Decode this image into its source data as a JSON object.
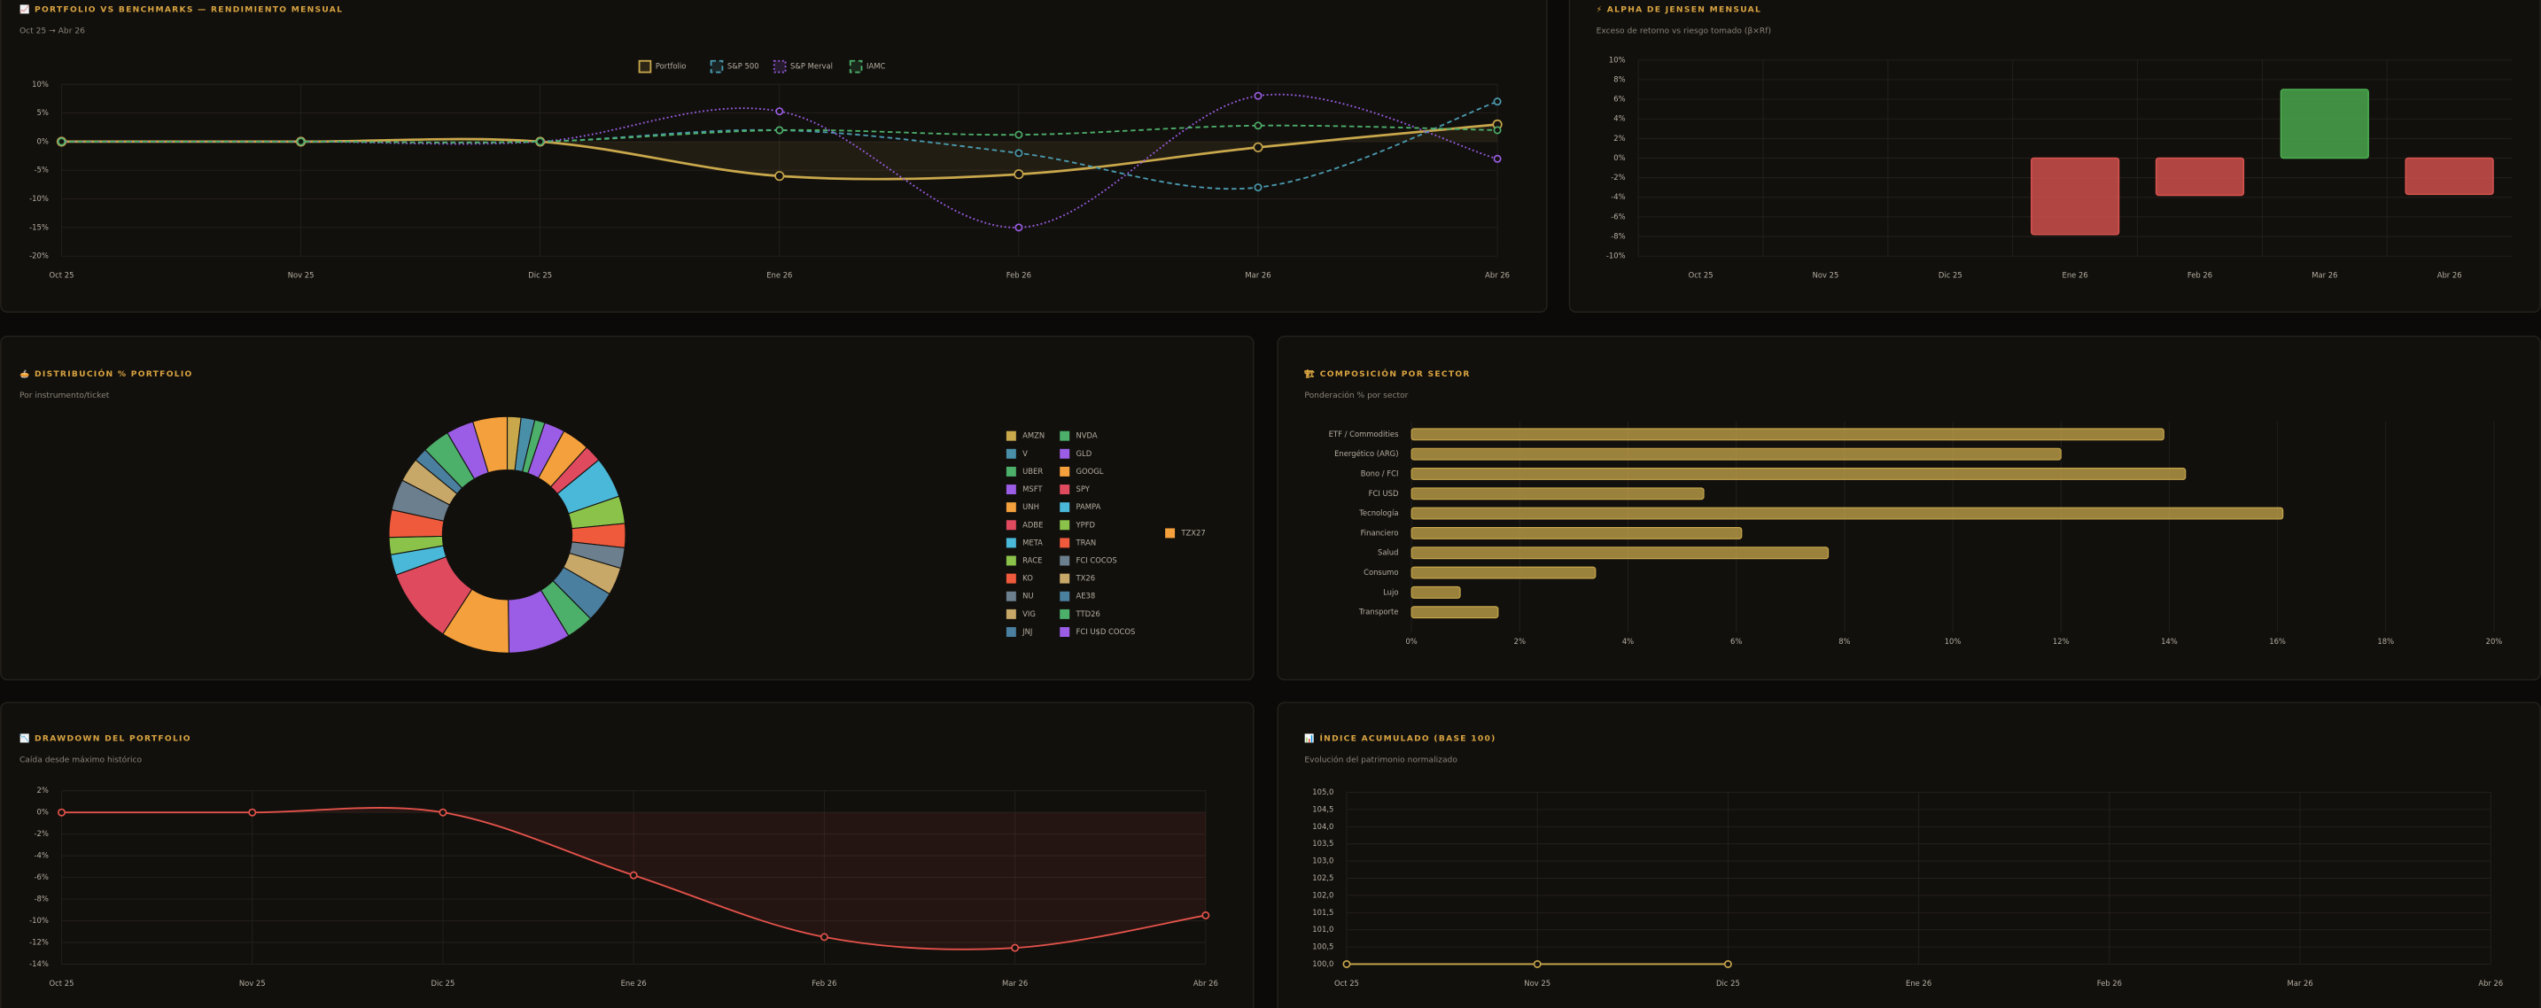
{
  "chart_data": [
    {
      "type": "line",
      "title": "📈 PORTFOLIO VS BENCHMARKS — RENDIMIENTO MENSUAL",
      "subtitle": "Oct 25 → Abr 26",
      "categories": [
        "Oct 25",
        "Nov 25",
        "Dic 25",
        "Ene 26",
        "Feb 26",
        "Mar 26",
        "Abr 26"
      ],
      "series": [
        {
          "name": "Portfolio",
          "color": "#c9a84c",
          "line_style": "solid",
          "fill": true,
          "values": [
            0,
            0,
            0,
            -6,
            -5.7,
            -1,
            3
          ]
        },
        {
          "name": "S&P 500",
          "color": "#4a9bb0",
          "line_style": "dashed",
          "fill": false,
          "values": [
            0,
            0,
            0,
            2,
            -2,
            -8,
            7
          ]
        },
        {
          "name": "S&P Merval",
          "color": "#9b5de5",
          "line_style": "dotted",
          "fill": false,
          "values": [
            0,
            0,
            0,
            5.3,
            -15,
            8,
            -3
          ]
        },
        {
          "name": "IAMC",
          "color": "#4caf6a",
          "line_style": "dashed",
          "fill": false,
          "values": [
            0,
            0,
            0,
            2,
            1.2,
            2.8,
            2
          ]
        }
      ],
      "ylim": [
        -20,
        10
      ],
      "yticks": [
        {
          "value": 10,
          "label": "10%"
        },
        {
          "value": 5,
          "label": "5%"
        },
        {
          "value": 0,
          "label": "0%"
        },
        {
          "value": -5,
          "label": "-5%"
        },
        {
          "value": -10,
          "label": "-10%"
        },
        {
          "value": -15,
          "label": "-15%"
        },
        {
          "value": -20,
          "label": "-20%"
        }
      ],
      "grid": true,
      "legend": "top"
    },
    {
      "type": "bar",
      "title": "⚡ ALPHA DE JENSEN MENSUAL",
      "subtitle": "Exceso de retorno vs riesgo tomado (β×Rf)",
      "categories": [
        "Oct 25",
        "Nov 25",
        "Dic 25",
        "Ene 26",
        "Feb 26",
        "Mar 26",
        "Abr 26"
      ],
      "values": [
        0,
        0,
        0,
        -7.8,
        -3.8,
        7,
        -3.7
      ],
      "positive_color": "#4caf50",
      "negative_color": "#d9534f",
      "ylim": [
        -10,
        10
      ],
      "yticks": [
        {
          "value": 10,
          "label": "10%"
        },
        {
          "value": 8,
          "label": "8%"
        },
        {
          "value": 6,
          "label": "6%"
        },
        {
          "value": 4,
          "label": "4%"
        },
        {
          "value": 2,
          "label": "2%"
        },
        {
          "value": 0,
          "label": "0%"
        },
        {
          "value": -2,
          "label": "-2%"
        },
        {
          "value": -4,
          "label": "-4%"
        },
        {
          "value": -6,
          "label": "-6%"
        },
        {
          "value": -8,
          "label": "-8%"
        },
        {
          "value": -10,
          "label": "-10%"
        }
      ],
      "grid": true
    },
    {
      "type": "doughnut",
      "title": "🥧 DISTRIBUCIÓN % PORTFOLIO",
      "subtitle": "Por instrumento/ticket",
      "categories": [
        "AMZN",
        "V",
        "UBER",
        "MSFT",
        "UNH",
        "ADBE",
        "META",
        "RACE",
        "KO",
        "NU",
        "VIG",
        "JNJ",
        "NVDA",
        "GLD",
        "GOOGL",
        "SPY",
        "PAMPA",
        "YPFD",
        "TRAN",
        "FCI COCOS",
        "TX26",
        "AE38",
        "TTD26",
        "FCI U$D COCOS",
        "TZX27"
      ],
      "values": [
        2,
        2,
        1.5,
        3,
        4,
        2.5,
        6,
        4,
        3.5,
        3,
        4,
        4.5,
        4,
        9,
        10,
        11,
        3,
        2.5,
        4,
        4.5,
        3.5,
        2,
        4,
        4,
        5
      ],
      "colors": [
        "#c9a84c",
        "#4a8fa8",
        "#4caf6a",
        "#9b5de5",
        "#f4a03c",
        "#e04a5f",
        "#4ab8d8",
        "#8bc34a",
        "#f05a3c",
        "#6b7f8e",
        "#c8a868",
        "#4a7fa0",
        "#4caf6a",
        "#9b5de5",
        "#f4a03c",
        "#e04a5f",
        "#4ab8d8",
        "#8bc34a",
        "#f05a3c",
        "#6b7f8e",
        "#c8a868",
        "#4a7fa0",
        "#4caf6a",
        "#9b5de5",
        "#f4a03c"
      ],
      "legend": "right"
    },
    {
      "type": "hbar",
      "title": "🏗 COMPOSICIÓN POR SECTOR",
      "subtitle": "Ponderación % por sector",
      "categories": [
        "ETF / Commodities",
        "Energético (ARG)",
        "Bono / FCI",
        "FCI USD",
        "Tecnología",
        "Financiero",
        "Salud",
        "Consumo",
        "Lujo",
        "Transporte"
      ],
      "values": [
        13.9,
        12,
        14.3,
        5.4,
        16.1,
        6.1,
        7.7,
        3.4,
        0.9,
        1.6
      ],
      "color": "#c9a84c",
      "xlim": [
        0,
        20
      ],
      "xticks": [
        {
          "value": 0,
          "label": "0%"
        },
        {
          "value": 2,
          "label": "2%"
        },
        {
          "value": 4,
          "label": "4%"
        },
        {
          "value": 6,
          "label": "6%"
        },
        {
          "value": 8,
          "label": "8%"
        },
        {
          "value": 10,
          "label": "10%"
        },
        {
          "value": 12,
          "label": "12%"
        },
        {
          "value": 14,
          "label": "14%"
        },
        {
          "value": 16,
          "label": "16%"
        },
        {
          "value": 18,
          "label": "18%"
        },
        {
          "value": 20,
          "label": "20%"
        }
      ],
      "grid": true
    },
    {
      "type": "line",
      "title": "📉 DRAWDOWN DEL PORTFOLIO",
      "subtitle": "Caída desde máximo histórico",
      "categories": [
        "Oct 25",
        "Nov 25",
        "Dic 25",
        "Ene 26",
        "Feb 26",
        "Mar 26",
        "Abr 26"
      ],
      "series": [
        {
          "name": "Drawdown",
          "color": "#e5534b",
          "line_style": "solid",
          "fill": true,
          "values": [
            0,
            0,
            0,
            -5.8,
            -11.5,
            -12.5,
            -9.5
          ]
        }
      ],
      "ylim": [
        -14,
        2
      ],
      "yticks": [
        {
          "value": 2,
          "label": "2%"
        },
        {
          "value": 0,
          "label": "0%"
        },
        {
          "value": -2,
          "label": "-2%"
        },
        {
          "value": -4,
          "label": "-4%"
        },
        {
          "value": -6,
          "label": "-6%"
        },
        {
          "value": -8,
          "label": "-8%"
        },
        {
          "value": -10,
          "label": "-10%"
        },
        {
          "value": -12,
          "label": "-12%"
        },
        {
          "value": -14,
          "label": "-14%"
        }
      ],
      "grid": true
    },
    {
      "type": "line",
      "title": "📊 ÍNDICE ACUMULADO (BASE 100)",
      "subtitle": "Evolución del patrimonio normalizado",
      "categories": [
        "Oct 25",
        "Nov 25",
        "Dic 25",
        "Ene 26",
        "Feb 26",
        "Mar 26",
        "Abr 26"
      ],
      "series": [
        {
          "name": "Índice",
          "color": "#c9a84c",
          "line_style": "solid",
          "fill": true,
          "values": [
            100,
            100,
            100,
            null,
            null,
            null,
            null
          ]
        }
      ],
      "ylim": [
        100,
        105
      ],
      "yticks": [
        {
          "value": 100,
          "label": "100,0"
        },
        {
          "value": 100.5,
          "label": "100,5"
        },
        {
          "value": 101,
          "label": "101,0"
        },
        {
          "value": 101.5,
          "label": "101,5"
        },
        {
          "value": 102,
          "label": "102,0"
        },
        {
          "value": 102.5,
          "label": "102,5"
        },
        {
          "value": 103,
          "label": "103,0"
        },
        {
          "value": 103.5,
          "label": "103,5"
        },
        {
          "value": 104,
          "label": "104,0"
        },
        {
          "value": 104.5,
          "label": "104,5"
        },
        {
          "value": 105,
          "label": "105,0"
        }
      ],
      "grid": true
    }
  ]
}
